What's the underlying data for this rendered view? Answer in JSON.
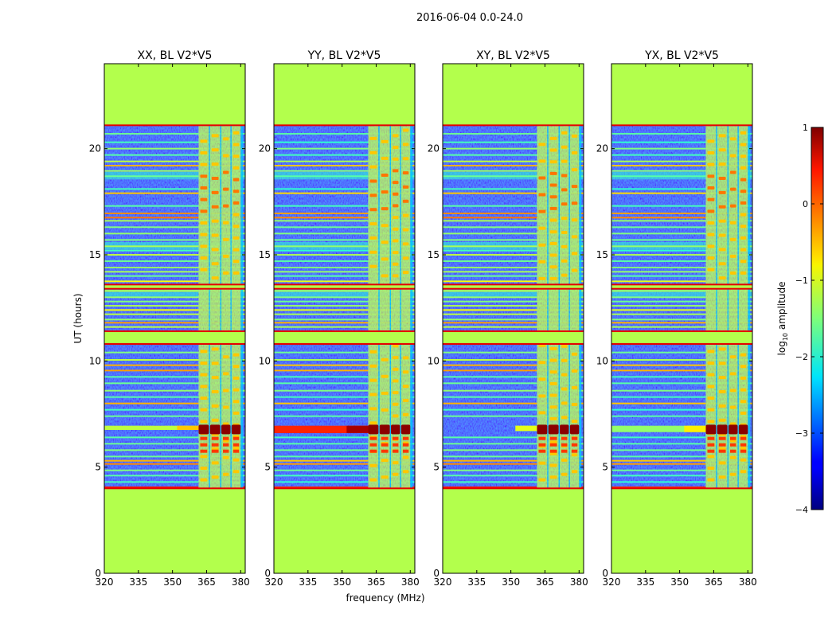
{
  "chart_data": {
    "type": "heatmap",
    "suptitle": "2016-06-04 0.0-24.0",
    "xlabel": "frequency (MHz)",
    "ylabel": "UT (hours)",
    "x_ticks": [
      320,
      335,
      350,
      365,
      380
    ],
    "y_ticks": [
      0,
      5,
      10,
      15,
      20
    ],
    "xlim": [
      320,
      382
    ],
    "ylim": [
      0,
      24
    ],
    "background_level": -1.25,
    "panels": [
      {
        "title": "XX, BL V2*V5",
        "strong_rfi": "weak-extended",
        "strip_ut": [
          6.95,
          6.75
        ],
        "strip_level": -1.2
      },
      {
        "title": "YY, BL V2*V5",
        "strong_rfi": "strong-extended",
        "strip_ut": [
          6.95,
          6.6
        ],
        "strip_level": 0.2
      },
      {
        "title": "XY, BL V2*V5",
        "strong_rfi": "weak-short",
        "strip_ut": [
          6.95,
          6.7
        ],
        "strip_level": -1.6
      },
      {
        "title": "YX, BL V2*V5",
        "strong_rfi": "weak-extended",
        "strip_ut": [
          6.95,
          6.65
        ],
        "strip_level": -1.4
      }
    ],
    "data_ut_range": [
      4.0,
      21.1
    ],
    "blanked_ut_ranges": [
      [
        0,
        4.0
      ],
      [
        10.8,
        11.4
      ],
      [
        13.4,
        13.6
      ],
      [
        21.1,
        24
      ]
    ],
    "rfi_channels_mhz": [
      [
        361.5,
        366
      ],
      [
        366.5,
        371
      ],
      [
        371.5,
        375.5
      ],
      [
        376,
        380
      ]
    ],
    "colorbar": {
      "label": "log",
      "label_sub": "10",
      "label_rest": " amplitude",
      "ticks": [
        1,
        0,
        -1,
        -2,
        -3,
        -4
      ],
      "range": [
        -4,
        1
      ],
      "colormap": "jet"
    }
  }
}
